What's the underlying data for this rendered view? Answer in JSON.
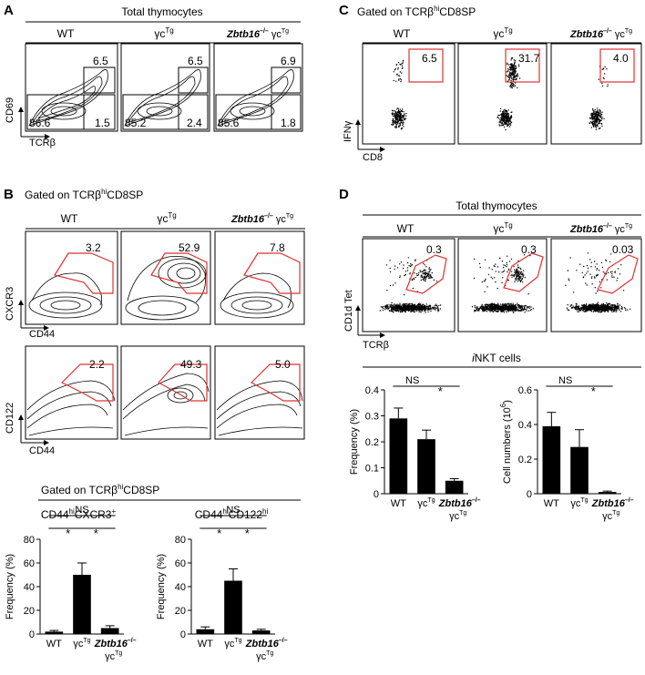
{
  "panel_letters": {
    "a": "A",
    "b": "B",
    "c": "C",
    "d": "D"
  },
  "genotypes": {
    "wt": "WT",
    "gc": "γc",
    "tg": "Tg",
    "ko": "Zbtb16",
    "ko_sup": "–/–"
  },
  "panel_a": {
    "header": "Total thymocytes",
    "y_axis": "CD69",
    "x_axis": "TCRβ",
    "plots": [
      {
        "upper": "6.5",
        "lower_left": "86.6",
        "lower_right": "1.5"
      },
      {
        "upper": "6.5",
        "lower_left": "85.2",
        "lower_right": "2.4"
      },
      {
        "upper": "6.9",
        "lower_left": "85.6",
        "lower_right": "1.8"
      }
    ]
  },
  "panel_b": {
    "header_prefix": "Gated on TCRβ",
    "header_sup": "hi",
    "header_suffix": "CD8SP",
    "row1_y_axis": "CXCR3",
    "row1_x_axis": "CD44",
    "row1_values": [
      "3.2",
      "52.9",
      "7.8"
    ],
    "row2_y_axis": "CD122",
    "row2_x_axis": "CD44",
    "row2_values": [
      "2.2",
      "49.3",
      "5.0"
    ],
    "bar_header_prefix": "Gated on TCRβ",
    "bar_header_sup": "hi",
    "bar_header_suffix": "CD8SP"
  },
  "panel_c": {
    "header_prefix": "Gated on TCRβ",
    "header_sup": "hi",
    "header_suffix": "CD8SP",
    "y_axis": "IFNγ",
    "x_axis": "CD8",
    "values": [
      "6.5",
      "31.7",
      "4.0"
    ]
  },
  "panel_d": {
    "header": "Total thymocytes",
    "y_axis": "CD1d Tet",
    "x_axis": "TCRβ",
    "values": [
      "0.3",
      "0.3",
      "0.03"
    ],
    "bar_header_italic": "i",
    "bar_header_rest": "NKT cells"
  },
  "stats": {
    "ns": "NS",
    "star": "*"
  },
  "chart_data": [
    {
      "type": "bar",
      "title_parts": [
        "CD44",
        "hi",
        "CXCR3",
        "+"
      ],
      "categories": [
        "WT",
        "γcTg",
        "Zbtb16–/–γcTg"
      ],
      "values": [
        2,
        50,
        5
      ],
      "errors": [
        1,
        10,
        2
      ],
      "ylabel": "Frequency (%)",
      "ylim": [
        0,
        80
      ],
      "yticks": [
        "0",
        "20",
        "40",
        "60",
        "80"
      ]
    },
    {
      "type": "bar",
      "title_parts": [
        "CD44",
        "hi",
        "CD122",
        "hi"
      ],
      "categories": [
        "WT",
        "γcTg",
        "Zbtb16–/–γcTg"
      ],
      "values": [
        4,
        45,
        3
      ],
      "errors": [
        2,
        10,
        1
      ],
      "ylabel": "Frequency (%)",
      "ylim": [
        0,
        80
      ],
      "yticks": [
        "0",
        "20",
        "40",
        "60",
        "80"
      ]
    },
    {
      "type": "bar",
      "title": "",
      "categories": [
        "WT",
        "γcTg",
        "Zbtb16–/–γcTg"
      ],
      "values": [
        0.29,
        0.21,
        0.05
      ],
      "errors": [
        0.04,
        0.035,
        0.008
      ],
      "ylabel": "Frequency (%)",
      "ylim": [
        0,
        0.4
      ],
      "yticks": [
        "0",
        "0.1",
        "0.2",
        "0.3",
        "0.4"
      ]
    },
    {
      "type": "bar",
      "title": "",
      "categories": [
        "WT",
        "γcTg",
        "Zbtb16–/–γcTg"
      ],
      "values": [
        0.39,
        0.27,
        0.01
      ],
      "errors": [
        0.08,
        0.1,
        0.005
      ],
      "ylabel_main": "Cell numbers (10",
      "ylabel_sup": "6",
      "ylabel_end": ")",
      "ylim": [
        0,
        0.6
      ],
      "yticks": [
        "0",
        "0.2",
        "0.4",
        "0.6"
      ]
    }
  ]
}
